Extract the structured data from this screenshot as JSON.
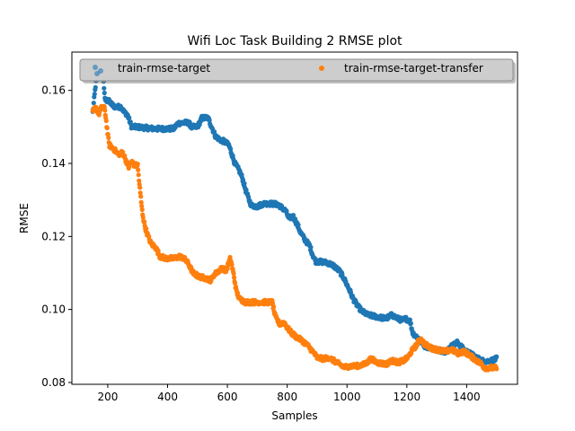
{
  "chart_data": {
    "type": "scatter",
    "title": "Wifi Loc Task Building 2 RMSE plot",
    "xlabel": "Samples",
    "ylabel": "RMSE",
    "xlim": [
      80,
      1570
    ],
    "ylim": [
      0.0795,
      0.1705
    ],
    "xticks": [
      200,
      400,
      600,
      800,
      1000,
      1200,
      1400
    ],
    "yticks": [
      0.08,
      0.1,
      0.12,
      0.14,
      0.16
    ],
    "ytick_labels": [
      "0.08",
      "0.10",
      "0.12",
      "0.14",
      "0.16"
    ],
    "legend": {
      "placement": "top",
      "columns": 2
    },
    "series": [
      {
        "name": "train-rmse-target",
        "color": "#1f77b4",
        "knots": [
          [
            150,
            0.154
          ],
          [
            160,
            0.162
          ],
          [
            175,
            0.166
          ],
          [
            185,
            0.164
          ],
          [
            190,
            0.1575
          ],
          [
            205,
            0.157
          ],
          [
            215,
            0.156
          ],
          [
            225,
            0.1555
          ],
          [
            245,
            0.1555
          ],
          [
            255,
            0.154
          ],
          [
            265,
            0.1535
          ],
          [
            280,
            0.15
          ],
          [
            300,
            0.15
          ],
          [
            320,
            0.1498
          ],
          [
            360,
            0.1495
          ],
          [
            420,
            0.1495
          ],
          [
            435,
            0.151
          ],
          [
            470,
            0.1512
          ],
          [
            480,
            0.15
          ],
          [
            500,
            0.15
          ],
          [
            515,
            0.1525
          ],
          [
            535,
            0.1525
          ],
          [
            545,
            0.1505
          ],
          [
            560,
            0.1475
          ],
          [
            575,
            0.1465
          ],
          [
            590,
            0.146
          ],
          [
            605,
            0.145
          ],
          [
            615,
            0.1425
          ],
          [
            625,
            0.14
          ],
          [
            640,
            0.138
          ],
          [
            650,
            0.136
          ],
          [
            660,
            0.133
          ],
          [
            670,
            0.1305
          ],
          [
            680,
            0.1285
          ],
          [
            700,
            0.1282
          ],
          [
            720,
            0.129
          ],
          [
            740,
            0.129
          ],
          [
            770,
            0.1288
          ],
          [
            780,
            0.128
          ],
          [
            795,
            0.127
          ],
          [
            805,
            0.125
          ],
          [
            820,
            0.1255
          ],
          [
            835,
            0.123
          ],
          [
            845,
            0.121
          ],
          [
            860,
            0.119
          ],
          [
            875,
            0.1175
          ],
          [
            885,
            0.115
          ],
          [
            895,
            0.1132
          ],
          [
            920,
            0.113
          ],
          [
            935,
            0.1128
          ],
          [
            955,
            0.112
          ],
          [
            975,
            0.1105
          ],
          [
            990,
            0.1085
          ],
          [
            1010,
            0.105
          ],
          [
            1020,
            0.103
          ],
          [
            1035,
            0.101
          ],
          [
            1050,
            0.0995
          ],
          [
            1070,
            0.0985
          ],
          [
            1100,
            0.098
          ],
          [
            1130,
            0.0975
          ],
          [
            1150,
            0.0985
          ],
          [
            1170,
            0.0975
          ],
          [
            1185,
            0.097
          ],
          [
            1195,
            0.0975
          ],
          [
            1210,
            0.097
          ],
          [
            1220,
            0.0935
          ],
          [
            1240,
            0.092
          ],
          [
            1260,
            0.09
          ],
          [
            1280,
            0.0895
          ],
          [
            1300,
            0.089
          ],
          [
            1330,
            0.0885
          ],
          [
            1350,
            0.09
          ],
          [
            1370,
            0.091
          ],
          [
            1390,
            0.089
          ],
          [
            1410,
            0.088
          ],
          [
            1430,
            0.087
          ],
          [
            1450,
            0.086
          ],
          [
            1470,
            0.0858
          ],
          [
            1490,
            0.0862
          ],
          [
            1500,
            0.0865
          ]
        ]
      },
      {
        "name": "train-rmse-target-transfer",
        "color": "#ff7f0e",
        "knots": [
          [
            150,
            0.154
          ],
          [
            160,
            0.1555
          ],
          [
            170,
            0.1535
          ],
          [
            180,
            0.1555
          ],
          [
            190,
            0.155
          ],
          [
            200,
            0.148
          ],
          [
            205,
            0.145
          ],
          [
            220,
            0.144
          ],
          [
            235,
            0.1425
          ],
          [
            250,
            0.143
          ],
          [
            260,
            0.141
          ],
          [
            270,
            0.139
          ],
          [
            280,
            0.1405
          ],
          [
            290,
            0.1395
          ],
          [
            300,
            0.1395
          ],
          [
            305,
            0.135
          ],
          [
            310,
            0.131
          ],
          [
            315,
            0.127
          ],
          [
            320,
            0.1245
          ],
          [
            325,
            0.1225
          ],
          [
            335,
            0.12
          ],
          [
            345,
            0.118
          ],
          [
            360,
            0.117
          ],
          [
            375,
            0.1145
          ],
          [
            395,
            0.114
          ],
          [
            420,
            0.114
          ],
          [
            440,
            0.1145
          ],
          [
            455,
            0.114
          ],
          [
            470,
            0.1125
          ],
          [
            485,
            0.11
          ],
          [
            505,
            0.109
          ],
          [
            530,
            0.1085
          ],
          [
            545,
            0.108
          ],
          [
            555,
            0.1095
          ],
          [
            570,
            0.1105
          ],
          [
            585,
            0.1115
          ],
          [
            595,
            0.1105
          ],
          [
            610,
            0.114
          ],
          [
            620,
            0.11
          ],
          [
            630,
            0.105
          ],
          [
            640,
            0.103
          ],
          [
            660,
            0.102
          ],
          [
            700,
            0.102
          ],
          [
            750,
            0.102
          ],
          [
            760,
            0.098
          ],
          [
            775,
            0.096
          ],
          [
            790,
            0.0965
          ],
          [
            800,
            0.095
          ],
          [
            815,
            0.0935
          ],
          [
            830,
            0.0925
          ],
          [
            850,
            0.0915
          ],
          [
            870,
            0.09
          ],
          [
            890,
            0.088
          ],
          [
            900,
            0.0868
          ],
          [
            920,
            0.0865
          ],
          [
            940,
            0.0868
          ],
          [
            955,
            0.086
          ],
          [
            975,
            0.085
          ],
          [
            990,
            0.0842
          ],
          [
            1010,
            0.0845
          ],
          [
            1030,
            0.0845
          ],
          [
            1060,
            0.085
          ],
          [
            1080,
            0.0865
          ],
          [
            1100,
            0.0855
          ],
          [
            1130,
            0.085
          ],
          [
            1150,
            0.086
          ],
          [
            1170,
            0.0855
          ],
          [
            1190,
            0.086
          ],
          [
            1205,
            0.087
          ],
          [
            1215,
            0.0885
          ],
          [
            1230,
            0.09
          ],
          [
            1245,
            0.092
          ],
          [
            1260,
            0.0905
          ],
          [
            1280,
            0.0895
          ],
          [
            1300,
            0.089
          ],
          [
            1330,
            0.0885
          ],
          [
            1350,
            0.089
          ],
          [
            1370,
            0.088
          ],
          [
            1390,
            0.0885
          ],
          [
            1410,
            0.0875
          ],
          [
            1430,
            0.0862
          ],
          [
            1450,
            0.085
          ],
          [
            1460,
            0.084
          ],
          [
            1500,
            0.084
          ]
        ]
      }
    ]
  }
}
